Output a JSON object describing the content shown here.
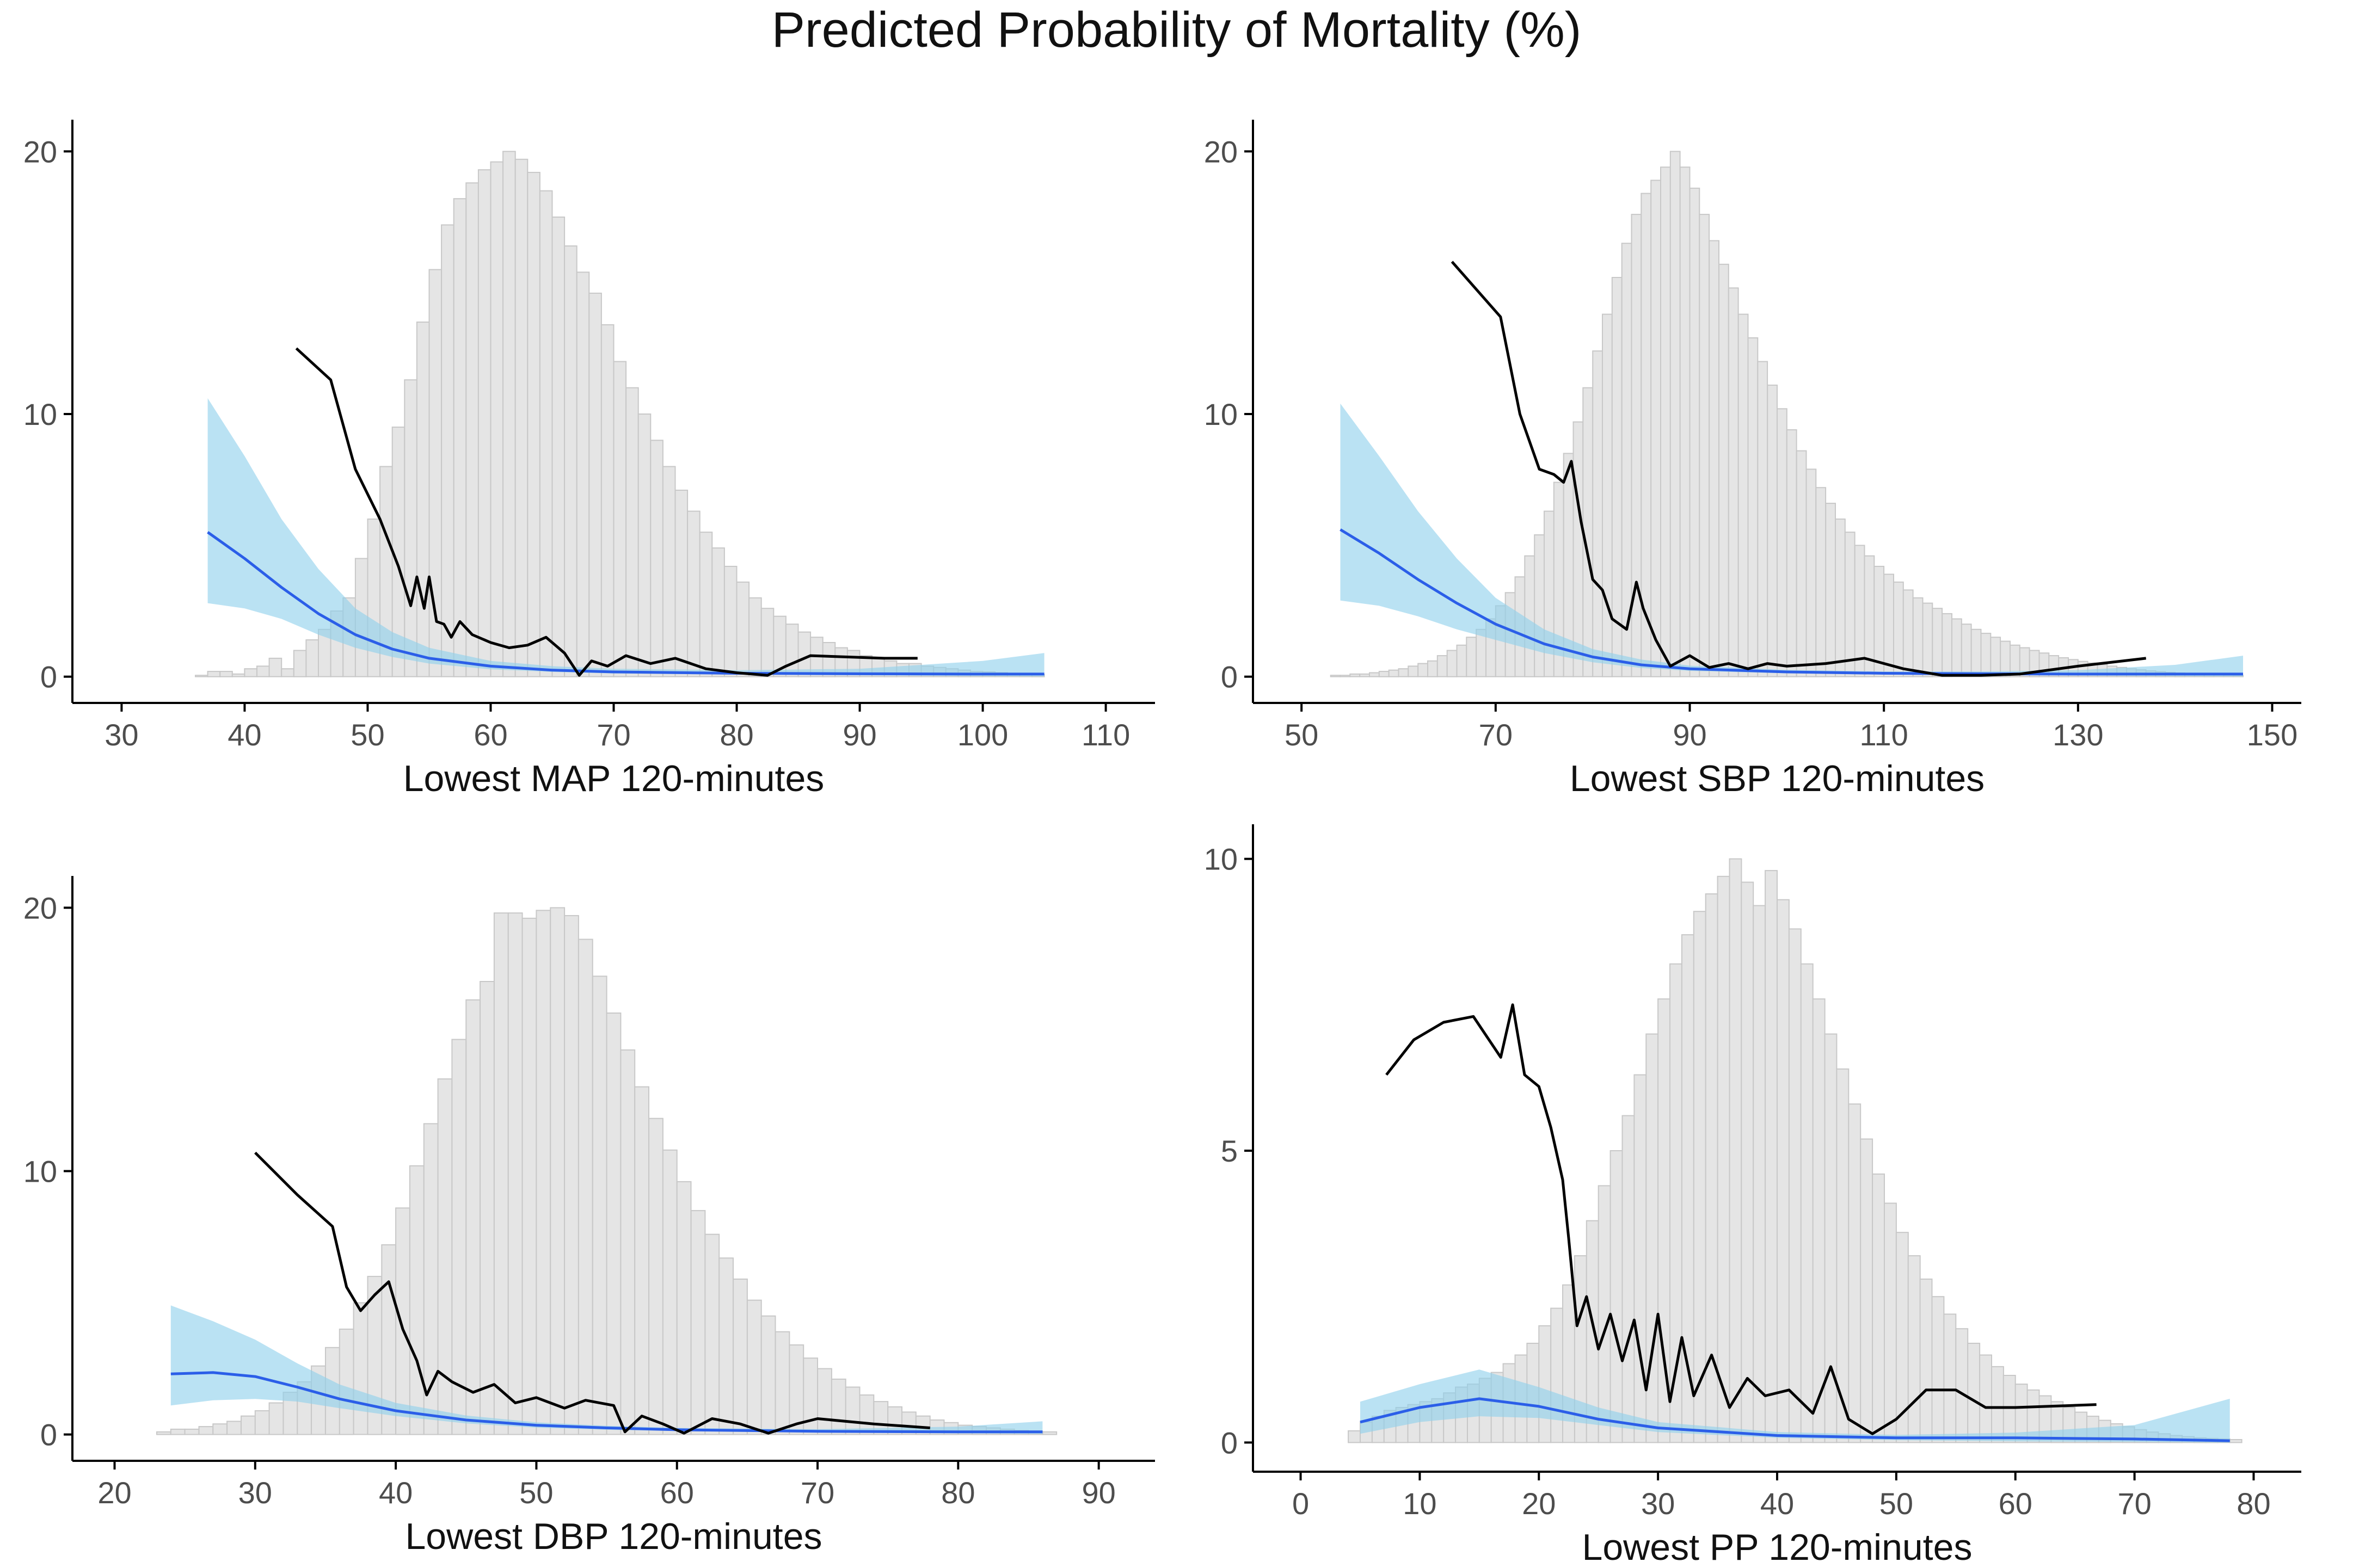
{
  "title": "Predicted Probability of Mortality (%)",
  "colors": {
    "hist_fill": "#e5e5e5",
    "hist_stroke": "#c8c8c8",
    "band": "#8fd0ec",
    "fit_line": "#2b5ee8",
    "observed_line": "#000000",
    "axis": "#000000"
  },
  "chart_data": [
    {
      "type": "histogram+line",
      "xlabel": "Lowest MAP 120-minutes",
      "ylabel": "",
      "xlim": [
        26,
        114
      ],
      "ylim": [
        -1,
        21
      ],
      "xticks": [
        30,
        40,
        50,
        60,
        70,
        80,
        90,
        100,
        110
      ],
      "yticks": [
        0,
        10,
        20
      ],
      "histogram": {
        "bin_start": 36,
        "bin_width": 1,
        "heights": [
          0.05,
          0.2,
          0.2,
          0.1,
          0.3,
          0.4,
          0.7,
          0.3,
          1.0,
          1.4,
          1.8,
          2.5,
          3.0,
          4.5,
          6.0,
          8.0,
          9.5,
          11.3,
          13.5,
          15.5,
          17.2,
          18.2,
          18.8,
          19.3,
          19.6,
          20.0,
          19.7,
          19.2,
          18.5,
          17.5,
          16.4,
          15.4,
          14.6,
          13.4,
          12.0,
          11.0,
          10.0,
          9.0,
          8.0,
          7.1,
          6.3,
          5.5,
          4.9,
          4.2,
          3.6,
          3.0,
          2.6,
          2.3,
          2.0,
          1.7,
          1.5,
          1.3,
          1.1,
          1.0,
          0.8,
          0.7,
          0.6,
          0.5,
          0.5,
          0.4,
          0.35,
          0.3,
          0.25,
          0.2,
          0.18,
          0.15,
          0.12,
          0.1,
          0.08
        ]
      },
      "fit": {
        "x": [
          37,
          40,
          43,
          46,
          49,
          52,
          55,
          60,
          65,
          70,
          80,
          90,
          100,
          105
        ],
        "y": [
          5.5,
          4.5,
          3.4,
          2.4,
          1.6,
          1.05,
          0.7,
          0.4,
          0.25,
          0.18,
          0.13,
          0.11,
          0.1,
          0.1
        ],
        "lower": [
          2.8,
          2.6,
          2.2,
          1.6,
          1.1,
          0.75,
          0.5,
          0.28,
          0.18,
          0.12,
          0.08,
          0.05,
          0.02,
          0.01
        ],
        "upper": [
          10.6,
          8.4,
          6.0,
          4.1,
          2.6,
          1.7,
          1.1,
          0.6,
          0.4,
          0.3,
          0.25,
          0.3,
          0.6,
          0.9
        ]
      },
      "observed": {
        "x": [
          44.2,
          47.0,
          49.0,
          51.0,
          52.5,
          53.5,
          54.0,
          54.6,
          55.0,
          55.6,
          56.2,
          56.8,
          57.5,
          58.5,
          60.0,
          61.5,
          63.0,
          64.5,
          66.0,
          67.2,
          68.2,
          69.5,
          71.0,
          73.0,
          75.0,
          77.5,
          80.0,
          82.5,
          84.0,
          86.0,
          89.0,
          92.0,
          94.7
        ],
        "y": [
          12.5,
          11.3,
          7.9,
          6.0,
          4.2,
          2.7,
          3.8,
          2.6,
          3.8,
          2.1,
          2.0,
          1.5,
          2.1,
          1.6,
          1.3,
          1.1,
          1.2,
          1.5,
          0.9,
          0.05,
          0.6,
          0.4,
          0.8,
          0.5,
          0.7,
          0.3,
          0.15,
          0.05,
          0.4,
          0.8,
          0.75,
          0.7,
          0.7
        ]
      }
    },
    {
      "type": "histogram+line",
      "xlabel": "Lowest SBP 120-minutes",
      "ylabel": "",
      "xlim": [
        45,
        153
      ],
      "ylim": [
        -1,
        21
      ],
      "xticks": [
        50,
        70,
        90,
        110,
        130,
        150
      ],
      "yticks": [
        0,
        10,
        20
      ],
      "histogram": {
        "bin_start": 53,
        "bin_width": 1,
        "heights": [
          0.05,
          0.05,
          0.1,
          0.1,
          0.15,
          0.2,
          0.25,
          0.3,
          0.4,
          0.5,
          0.6,
          0.8,
          1.0,
          1.2,
          1.5,
          1.8,
          2.2,
          2.7,
          3.2,
          3.8,
          4.6,
          5.4,
          6.3,
          7.4,
          8.5,
          9.7,
          11.0,
          12.4,
          13.8,
          15.2,
          16.5,
          17.6,
          18.4,
          18.9,
          19.4,
          20.0,
          19.4,
          18.6,
          17.6,
          16.6,
          15.7,
          14.8,
          13.8,
          12.9,
          12.0,
          11.1,
          10.2,
          9.4,
          8.6,
          7.9,
          7.2,
          6.6,
          6.0,
          5.5,
          5.0,
          4.6,
          4.2,
          3.9,
          3.6,
          3.3,
          3.0,
          2.8,
          2.6,
          2.4,
          2.2,
          2.0,
          1.8,
          1.65,
          1.5,
          1.35,
          1.2,
          1.1,
          1.0,
          0.9,
          0.8,
          0.72,
          0.65,
          0.58,
          0.52,
          0.46,
          0.4,
          0.35,
          0.3,
          0.26,
          0.22,
          0.19,
          0.16,
          0.14,
          0.12,
          0.1,
          0.08,
          0.07,
          0.06,
          0.05
        ]
      },
      "fit": {
        "x": [
          54,
          58,
          62,
          66,
          70,
          75,
          80,
          85,
          90,
          100,
          110,
          120,
          130,
          140,
          147
        ],
        "y": [
          5.6,
          4.7,
          3.7,
          2.8,
          2.0,
          1.25,
          0.75,
          0.45,
          0.3,
          0.18,
          0.13,
          0.11,
          0.1,
          0.1,
          0.1
        ],
        "lower": [
          2.9,
          2.7,
          2.3,
          1.8,
          1.4,
          0.9,
          0.55,
          0.33,
          0.22,
          0.13,
          0.09,
          0.06,
          0.04,
          0.02,
          0.01
        ],
        "upper": [
          10.4,
          8.4,
          6.3,
          4.5,
          3.0,
          1.8,
          1.05,
          0.65,
          0.42,
          0.26,
          0.2,
          0.2,
          0.25,
          0.45,
          0.8
        ]
      },
      "observed": {
        "x": [
          65.5,
          70.5,
          72.5,
          74.5,
          76.0,
          77.0,
          77.8,
          78.8,
          80.0,
          81.0,
          82.0,
          83.5,
          84.5,
          85.2,
          86.5,
          88.0,
          90.0,
          92.0,
          94.0,
          96.0,
          98.0,
          100.0,
          104.0,
          108.0,
          112.0,
          116.0,
          120.0,
          124.0,
          130.0,
          137.0
        ],
        "y": [
          15.8,
          13.7,
          10.0,
          7.9,
          7.7,
          7.4,
          8.2,
          5.9,
          3.7,
          3.3,
          2.2,
          1.8,
          3.6,
          2.6,
          1.4,
          0.4,
          0.8,
          0.35,
          0.5,
          0.3,
          0.5,
          0.4,
          0.5,
          0.7,
          0.3,
          0.05,
          0.05,
          0.1,
          0.4,
          0.7
        ]
      }
    },
    {
      "type": "histogram+line",
      "xlabel": "Lowest DBP 120-minutes",
      "ylabel": "",
      "xlim": [
        17,
        94
      ],
      "ylim": [
        -1,
        21
      ],
      "xticks": [
        20,
        30,
        40,
        50,
        60,
        70,
        80,
        90
      ],
      "yticks": [
        0,
        10,
        20
      ],
      "histogram": {
        "bin_start": 23,
        "bin_width": 1,
        "heights": [
          0.1,
          0.2,
          0.2,
          0.3,
          0.4,
          0.5,
          0.7,
          0.9,
          1.2,
          1.6,
          2.0,
          2.6,
          3.3,
          4.0,
          5.0,
          6.0,
          7.2,
          8.6,
          10.2,
          11.8,
          13.5,
          15.0,
          16.5,
          17.2,
          19.8,
          19.8,
          19.6,
          19.9,
          20.0,
          19.7,
          18.8,
          17.4,
          16.0,
          14.6,
          13.2,
          12.0,
          10.8,
          9.6,
          8.5,
          7.6,
          6.7,
          5.9,
          5.1,
          4.5,
          3.9,
          3.4,
          2.9,
          2.5,
          2.1,
          1.8,
          1.5,
          1.25,
          1.05,
          0.85,
          0.7,
          0.55,
          0.45,
          0.35,
          0.3,
          0.25,
          0.2,
          0.15,
          0.12,
          0.1
        ]
      },
      "fit": {
        "x": [
          24,
          27,
          30,
          33,
          36,
          40,
          45,
          50,
          55,
          60,
          70,
          80,
          86
        ],
        "y": [
          2.3,
          2.35,
          2.2,
          1.8,
          1.35,
          0.9,
          0.55,
          0.35,
          0.25,
          0.18,
          0.12,
          0.1,
          0.1
        ],
        "lower": [
          1.1,
          1.3,
          1.35,
          1.25,
          1.0,
          0.7,
          0.42,
          0.26,
          0.18,
          0.13,
          0.08,
          0.04,
          0.02
        ],
        "upper": [
          4.9,
          4.3,
          3.6,
          2.7,
          1.9,
          1.2,
          0.72,
          0.46,
          0.33,
          0.25,
          0.2,
          0.3,
          0.5
        ]
      },
      "observed": {
        "x": [
          30.0,
          33.0,
          35.5,
          36.5,
          37.5,
          38.5,
          39.5,
          40.5,
          41.5,
          42.2,
          43.0,
          44.0,
          45.5,
          47.0,
          48.5,
          50.0,
          52.0,
          53.5,
          55.5,
          56.3,
          57.5,
          59.0,
          60.5,
          62.5,
          64.5,
          66.5,
          68.5,
          70.0,
          74.0,
          78.0
        ],
        "y": [
          10.7,
          9.1,
          7.9,
          5.6,
          4.7,
          5.3,
          5.8,
          4.0,
          2.8,
          1.5,
          2.4,
          2.0,
          1.6,
          1.9,
          1.2,
          1.4,
          1.0,
          1.3,
          1.1,
          0.1,
          0.7,
          0.4,
          0.05,
          0.6,
          0.4,
          0.05,
          0.4,
          0.6,
          0.4,
          0.25
        ]
      }
    },
    {
      "type": "histogram+line",
      "xlabel": "Lowest PP 120-minutes",
      "ylabel": "",
      "xlim": [
        -4,
        84
      ],
      "ylim": [
        -0.5,
        10.5
      ],
      "xticks": [
        0,
        10,
        20,
        30,
        40,
        50,
        60,
        70,
        80
      ],
      "yticks": [
        0,
        5,
        10
      ],
      "histogram": {
        "bin_start": 4,
        "bin_width": 1,
        "heights": [
          0.2,
          0.35,
          0.45,
          0.55,
          0.6,
          0.65,
          0.7,
          0.75,
          0.85,
          0.95,
          1.0,
          1.1,
          1.2,
          1.35,
          1.5,
          1.7,
          2.0,
          2.3,
          2.7,
          3.2,
          3.8,
          4.4,
          5.0,
          5.6,
          6.3,
          7.0,
          7.6,
          8.2,
          8.7,
          9.1,
          9.4,
          9.7,
          10.0,
          9.6,
          9.2,
          9.8,
          9.3,
          8.8,
          8.2,
          7.6,
          7.0,
          6.4,
          5.8,
          5.2,
          4.6,
          4.1,
          3.6,
          3.2,
          2.8,
          2.5,
          2.2,
          1.95,
          1.7,
          1.5,
          1.3,
          1.15,
          1.0,
          0.9,
          0.8,
          0.7,
          0.6,
          0.52,
          0.45,
          0.38,
          0.32,
          0.27,
          0.22,
          0.18,
          0.15,
          0.12,
          0.1,
          0.08,
          0.07,
          0.06,
          0.05
        ]
      },
      "fit": {
        "x": [
          5,
          10,
          15,
          20,
          25,
          30,
          40,
          50,
          60,
          70,
          78
        ],
        "y": [
          0.35,
          0.6,
          0.75,
          0.62,
          0.4,
          0.25,
          0.12,
          0.08,
          0.08,
          0.06,
          0.03
        ],
        "lower": [
          0.15,
          0.35,
          0.45,
          0.42,
          0.3,
          0.18,
          0.08,
          0.04,
          0.02,
          0.01,
          0.0
        ],
        "upper": [
          0.7,
          1.0,
          1.25,
          0.95,
          0.6,
          0.35,
          0.18,
          0.13,
          0.17,
          0.3,
          0.75
        ]
      },
      "observed": {
        "x": [
          7.2,
          9.5,
          12.0,
          14.5,
          16.8,
          17.8,
          18.8,
          20.0,
          21.0,
          22.0,
          22.5,
          23.2,
          24.0,
          25.0,
          26.0,
          27.0,
          28.0,
          29.0,
          30.0,
          31.0,
          32.0,
          33.0,
          34.5,
          36.0,
          37.5,
          39.0,
          41.0,
          43.0,
          44.5,
          46.0,
          48.0,
          50.0,
          52.5,
          55.0,
          57.5,
          60.0,
          66.8
        ],
        "y": [
          6.3,
          6.9,
          7.2,
          7.3,
          6.6,
          7.5,
          6.3,
          6.1,
          5.4,
          4.5,
          3.5,
          2.0,
          2.5,
          1.6,
          2.2,
          1.4,
          2.1,
          0.9,
          2.2,
          0.7,
          1.8,
          0.8,
          1.5,
          0.6,
          1.1,
          0.8,
          0.9,
          0.5,
          1.3,
          0.4,
          0.15,
          0.4,
          0.9,
          0.9,
          0.6,
          0.6,
          0.65
        ]
      }
    }
  ]
}
